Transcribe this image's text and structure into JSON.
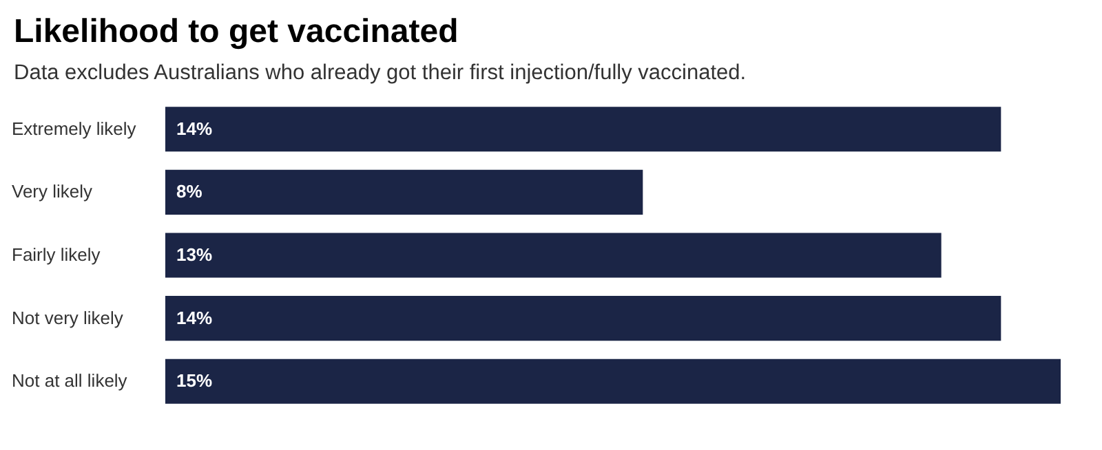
{
  "chart_data": {
    "type": "bar",
    "orientation": "horizontal",
    "title": "Likelihood to get vaccinated",
    "subtitle": "Data excludes Australians who already got their first injection/fully vaccinated.",
    "categories": [
      "Extremely likely",
      "Very likely",
      "Fairly likely",
      "Not very likely",
      "Not at all likely"
    ],
    "values": [
      14,
      8,
      13,
      14,
      15
    ],
    "value_labels": [
      "14%",
      "8%",
      "13%",
      "14%",
      "15%"
    ],
    "color": "#1b2546"
  }
}
